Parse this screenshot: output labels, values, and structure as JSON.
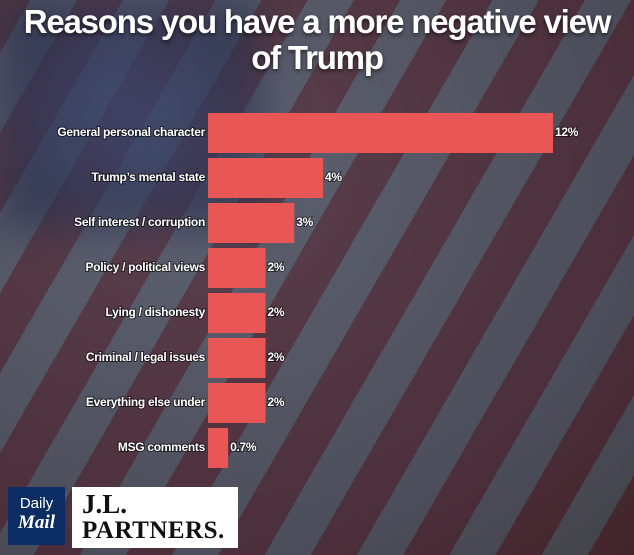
{
  "chart_data": {
    "type": "bar",
    "orientation": "horizontal",
    "title": "Reasons you have a more negative view of Trump",
    "categories": [
      "General personal character",
      "Trump’s mental state",
      "Self interest / corruption",
      "Policy / political views",
      "Lying / dishonesty",
      "Criminal / legal issues",
      "Everything else under",
      "MSG comments"
    ],
    "values": [
      12,
      4,
      3,
      2,
      2,
      2,
      2,
      0.7
    ],
    "value_labels": [
      "12%",
      "4%",
      "3%",
      "2%",
      "2%",
      "2%",
      "2%",
      "0.7%"
    ],
    "color": "#e85656"
  },
  "logos": {
    "daily_mail": [
      "Daily",
      "Mail"
    ],
    "jl_partners": [
      "J.L.",
      "PARTNERS."
    ]
  }
}
